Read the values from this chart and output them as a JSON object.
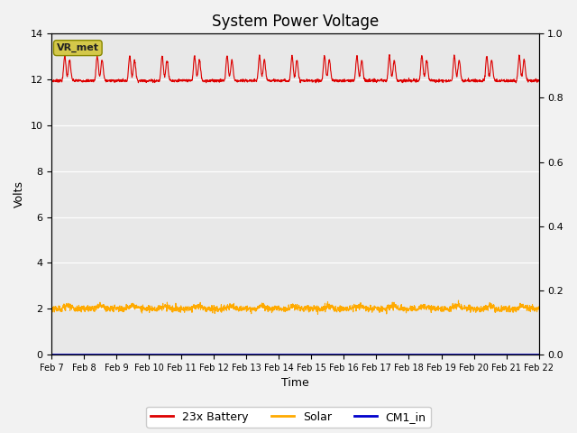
{
  "title": "System Power Voltage",
  "xlabel": "Time",
  "ylabel": "Volts",
  "ylim": [
    0,
    14
  ],
  "ylim2": [
    0.0,
    1.0
  ],
  "yticks": [
    0,
    2,
    4,
    6,
    8,
    10,
    12,
    14
  ],
  "yticks2": [
    0.0,
    0.2,
    0.4,
    0.6,
    0.8,
    1.0
  ],
  "xtick_labels": [
    "Feb 7",
    "Feb 8",
    "Feb 9",
    "Feb 10",
    "Feb 11",
    "Feb 12",
    "Feb 13",
    "Feb 14",
    "Feb 15",
    "Feb 16",
    "Feb 17",
    "Feb 18",
    "Feb 19",
    "Feb 20",
    "Feb 21",
    "Feb 22"
  ],
  "annotation_text": "VR_met",
  "annotation_facecolor": "#d4c84a",
  "annotation_edgecolor": "#888800",
  "plot_bg_color": "#e8e8e8",
  "fig_bg_color": "#f2f2f2",
  "grid_color": "#ffffff",
  "line_battery_color": "#dd0000",
  "line_solar_color": "#ffaa00",
  "line_cm1_color": "#0000cc",
  "legend_labels": [
    "23x Battery",
    "Solar",
    "CM1_in"
  ],
  "title_fontsize": 12,
  "axis_fontsize": 9,
  "tick_fontsize": 8,
  "n_days": 15
}
